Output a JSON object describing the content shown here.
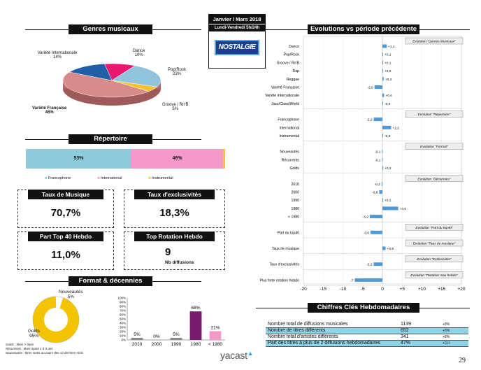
{
  "header": {
    "period": "Janvier / Mars 2018",
    "schedule": "Lundi-Vendredi 5h/24h",
    "station": "NOSTALGIE"
  },
  "genres": {
    "title": "Genres musicaux",
    "slices": [
      {
        "label": "Dance",
        "pct": "10%",
        "value": 10,
        "color": "#e8196e"
      },
      {
        "label": "Pop/Rock",
        "pct": "23%",
        "value": 23,
        "color": "#8fc4dc"
      },
      {
        "label": "Groove / Rn'B",
        "pct": "5%",
        "value": 5,
        "color": "#f4c430"
      },
      {
        "label": "Variété Française",
        "pct": "46%",
        "value": 46,
        "color": "#d98a8a"
      },
      {
        "label": "Variété Internationale",
        "pct": "14%",
        "value": 14,
        "color": "#1e5fa8"
      }
    ]
  },
  "repertoire": {
    "title": "Répertoire",
    "segments": [
      {
        "label": "53%",
        "value": 53,
        "color": "#8ecadc"
      },
      {
        "label": "46%",
        "value": 46,
        "color": "#f59ac8"
      },
      {
        "label": "",
        "value": 1,
        "color": "#f4c430"
      }
    ],
    "legend": [
      "Francophone",
      "International",
      "Instrumental"
    ],
    "legend_colors": [
      "#8ecadc",
      "#f59ac8",
      "#f4c430"
    ]
  },
  "kpis": {
    "taux_musique": {
      "title": "Taux de Musique",
      "value": "70,7%"
    },
    "taux_exclu": {
      "title": "Taux d'exclusivités",
      "value": "18,3%"
    },
    "top40": {
      "title": "Part Top 40 Hebdo",
      "value": "11,0%"
    },
    "rotation": {
      "title": "Top Rotation Hebdo",
      "value": "9",
      "sub": "Nb diffusions"
    }
  },
  "format": {
    "title": "Format & décennies",
    "donut": [
      {
        "label": "Nouveautés",
        "pct": "5%",
        "value": 5,
        "color": "#ffffff"
      },
      {
        "label": "Golds",
        "pct": "95%",
        "value": 95,
        "color": "#f5c400"
      }
    ],
    "notes": [
      "Golds : titres > 3ans",
      "Récurrents : titres ayant 1 à 3 ans",
      "Nouveautés : titres sortis au cours des 12 derniers mois"
    ]
  },
  "decades_chart": {
    "type": "bar",
    "categories": [
      "2010",
      "2000",
      "1990",
      "1980",
      "< 1980"
    ],
    "values": [
      5,
      0,
      5,
      68,
      21
    ],
    "labels": [
      "5%",
      "0%",
      "5%",
      "68%",
      "21%"
    ],
    "colors": [
      "#888888",
      "#888888",
      "#888888",
      "#7a1a6e",
      "#f59ac8"
    ],
    "yticks": [
      "0%",
      "10%",
      "20%",
      "30%",
      "40%",
      "50%",
      "60%",
      "70%",
      "80%",
      "90%",
      "100%"
    ],
    "ylim": [
      0,
      100
    ]
  },
  "evolutions": {
    "title": "Evolutions vs période précédente",
    "xticks": [
      "-20",
      "-15",
      "-10",
      "-5",
      "0",
      "+5",
      "+10",
      "+15",
      "+20"
    ],
    "xlim": [
      -20,
      20
    ],
    "groups": [
      {
        "box": "Evolution \"Genres Musicaux\"",
        "rows": [
          {
            "label": "Dance",
            "v": 1.1,
            "t": "+1,1"
          },
          {
            "label": "Pop/Rock",
            "v": 0.1,
            "t": "+0,1"
          },
          {
            "label": "Groove / Rn'B",
            "v": 0.1,
            "t": "+0,1"
          },
          {
            "label": "Rap",
            "v": 0,
            "t": "+0,0"
          },
          {
            "label": "Reggae",
            "v": 0.3,
            "t": "+0,3"
          },
          {
            "label": "Variété Française",
            "v": -2.0,
            "t": "-2,0"
          },
          {
            "label": "Variété Internationale",
            "v": 0.4,
            "t": "+0,4"
          },
          {
            "label": "Jazz/Class/World",
            "v": 0,
            "t": "-0,0"
          }
        ]
      },
      {
        "box": "Evolution \"Répertoire\"",
        "rows": [
          {
            "label": "Francophone",
            "v": -2.2,
            "t": "-2,2"
          },
          {
            "label": "International",
            "v": 2.2,
            "t": "+2,2"
          },
          {
            "label": "Instrumental",
            "v": 0,
            "t": "-0,0"
          }
        ]
      },
      {
        "box": "Evolution \"Format\"",
        "rows": [
          {
            "label": "Nouveautés",
            "v": -0.1,
            "t": "-0,1"
          },
          {
            "label": "Récurrents",
            "v": -0.1,
            "t": "-0,1"
          },
          {
            "label": "Golds",
            "v": 0.2,
            "t": "+0,2"
          }
        ]
      },
      {
        "box": "Evolution \"Décennies\"",
        "rows": [
          {
            "label": "2010",
            "v": -0.2,
            "t": "-0,2"
          },
          {
            "label": "2000",
            "v": -0.8,
            "t": "-0,8"
          },
          {
            "label": "1990",
            "v": 0.1,
            "t": "+0,1"
          },
          {
            "label": "1980",
            "v": 4.0,
            "t": "+4,0"
          },
          {
            "label": "< 1980",
            "v": -3.2,
            "t": "-3,2"
          }
        ]
      },
      {
        "box": "Evolution \"Part du top40\"",
        "rows": [
          {
            "label": "Part du top40",
            "v": -3.0,
            "t": "-3,0"
          }
        ]
      },
      {
        "box": "Evolution \"Taux de musique\"",
        "rows": [
          {
            "label": "Taux de musique",
            "v": 0.8,
            "t": "+0,8"
          }
        ]
      },
      {
        "box": "Evolution \"Exclusivités\"",
        "rows": [
          {
            "label": "Taux d'exclusivités",
            "v": -2.2,
            "t": "-2,2"
          }
        ]
      },
      {
        "box": "Evolution \"Rotation max hebdo\"",
        "rows": [
          {
            "label": "Plus forte rotation hebdo",
            "v": -7,
            "t": "-7"
          }
        ]
      }
    ]
  },
  "chiffres": {
    "title": "Chiffres Clés Hebdomadaires",
    "rows": [
      {
        "label": "Nombre total de diffusions musicales",
        "value": "1139",
        "delta": "+8%",
        "hl": false
      },
      {
        "label": "Nombre de titres différents",
        "value": "652",
        "delta": "+8%",
        "hl": true
      },
      {
        "label": "Nombre total d'artistes différents",
        "value": "341",
        "delta": "+8%",
        "hl": false
      },
      {
        "label": "Part des titres à plus de 2 diffusions hebdomadaires",
        "value": "47%",
        "delta": "+0,0",
        "hl": true
      }
    ]
  },
  "footer": {
    "brand": "yacast",
    "page": "29"
  }
}
